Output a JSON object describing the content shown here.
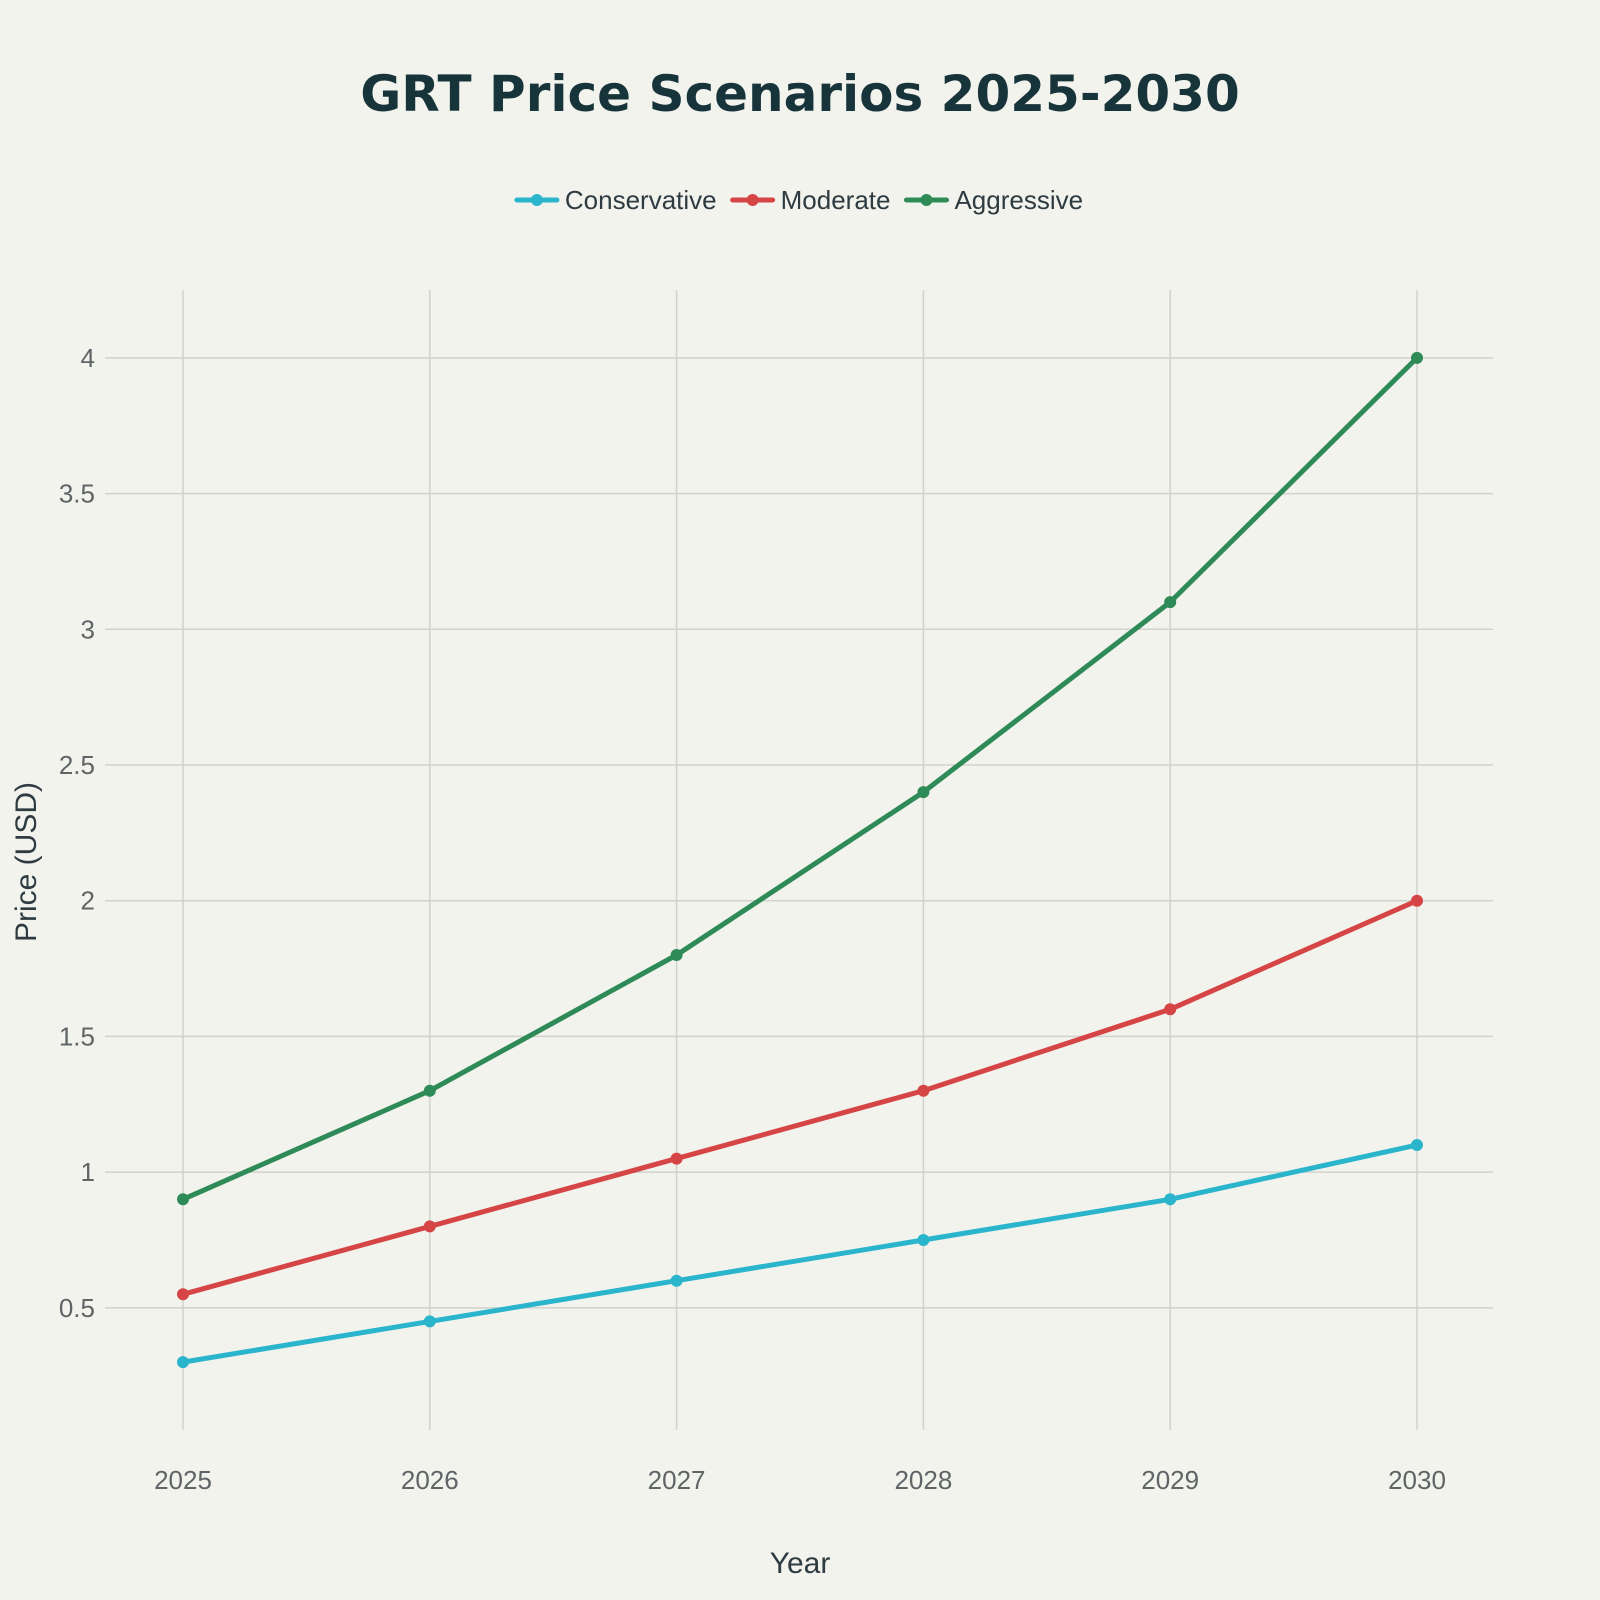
{
  "chart_data": {
    "type": "line",
    "title": "GRT Price Scenarios 2025-2030",
    "xlabel": "Year",
    "ylabel": "Price (USD)",
    "x": [
      "2025",
      "2026",
      "2027",
      "2028",
      "2029",
      "2030"
    ],
    "yticks": [
      "0.5",
      "1",
      "1.5",
      "2",
      "2.5",
      "3",
      "3.5",
      "4"
    ],
    "ylim": [
      0.05,
      4.25
    ],
    "grid": true,
    "legend_position": "top-center",
    "series": [
      {
        "name": "Conservative",
        "color": "#2bb5cc",
        "values": [
          0.3,
          0.45,
          0.6,
          0.75,
          0.9,
          1.1
        ]
      },
      {
        "name": "Moderate",
        "color": "#d64545",
        "values": [
          0.55,
          0.8,
          1.05,
          1.3,
          1.6,
          2.0
        ]
      },
      {
        "name": "Aggressive",
        "color": "#2e8b57",
        "values": [
          0.9,
          1.3,
          1.8,
          2.4,
          3.1,
          4.0
        ]
      }
    ]
  }
}
